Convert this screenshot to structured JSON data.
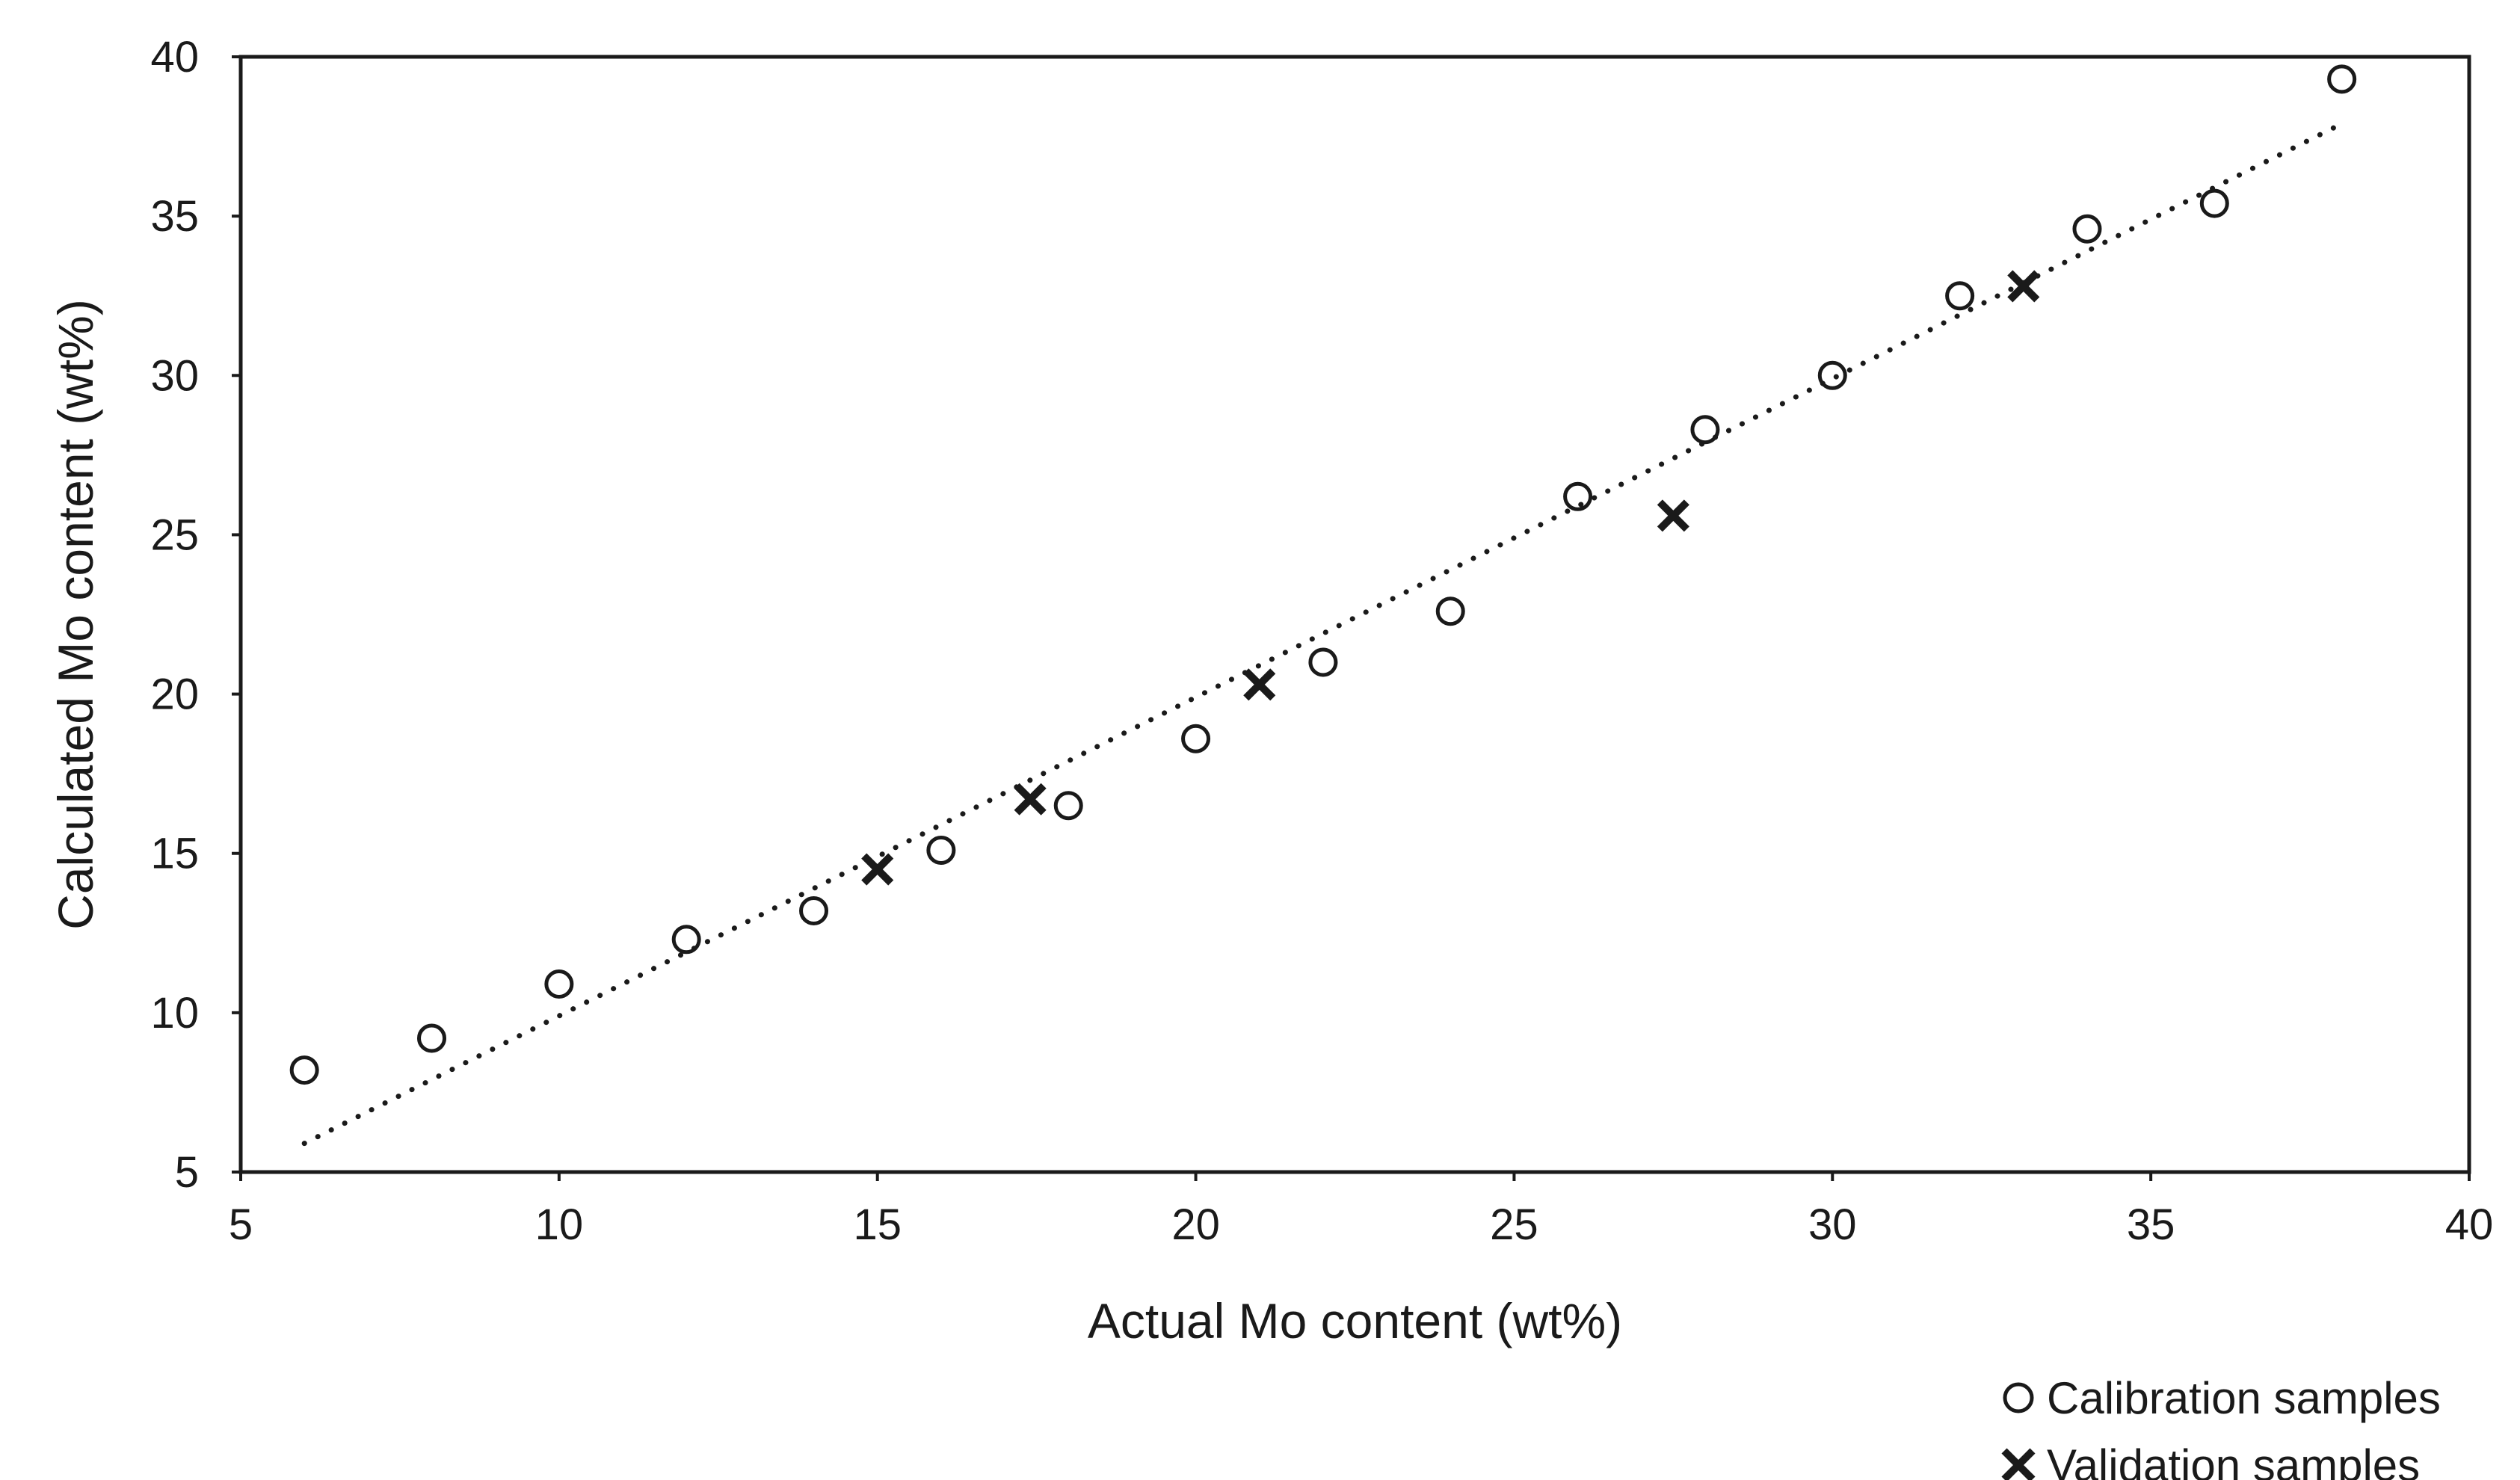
{
  "chart_data": {
    "type": "scatter",
    "title": "",
    "xlabel": "Actual Mo content (wt%)",
    "ylabel": "Calculated Mo content (wt%)",
    "xlim": [
      5,
      40
    ],
    "ylim": [
      5,
      40
    ],
    "xticks": [
      5,
      10,
      15,
      20,
      25,
      30,
      35,
      40
    ],
    "yticks": [
      5,
      10,
      15,
      20,
      25,
      30,
      35,
      40
    ],
    "grid": false,
    "legend_position": "bottom-right",
    "series": [
      {
        "name": "Calibration samples",
        "marker": "circle",
        "color": "#1a1a1a",
        "points": [
          {
            "x": 6,
            "y": 8.2
          },
          {
            "x": 8,
            "y": 9.2
          },
          {
            "x": 10,
            "y": 10.9
          },
          {
            "x": 12,
            "y": 12.3
          },
          {
            "x": 14,
            "y": 13.2
          },
          {
            "x": 16,
            "y": 15.1
          },
          {
            "x": 18,
            "y": 16.5
          },
          {
            "x": 20,
            "y": 18.6
          },
          {
            "x": 22,
            "y": 21.0
          },
          {
            "x": 24,
            "y": 22.6
          },
          {
            "x": 26,
            "y": 26.2
          },
          {
            "x": 28,
            "y": 28.3
          },
          {
            "x": 30,
            "y": 30.0
          },
          {
            "x": 32,
            "y": 32.5
          },
          {
            "x": 34,
            "y": 34.6
          },
          {
            "x": 36,
            "y": 35.4
          },
          {
            "x": 38,
            "y": 39.3
          }
        ]
      },
      {
        "name": "Validation samples",
        "marker": "x",
        "color": "#1a1a1a",
        "points": [
          {
            "x": 15,
            "y": 14.5
          },
          {
            "x": 17.4,
            "y": 16.7
          },
          {
            "x": 21,
            "y": 20.3
          },
          {
            "x": 27.5,
            "y": 25.6
          },
          {
            "x": 33,
            "y": 32.8
          }
        ]
      }
    ],
    "trendline": {
      "style": "dotted",
      "color": "#1a1a1a",
      "from": {
        "x": 6,
        "y": 5.9
      },
      "to": {
        "x": 38,
        "y": 37.9
      }
    }
  }
}
